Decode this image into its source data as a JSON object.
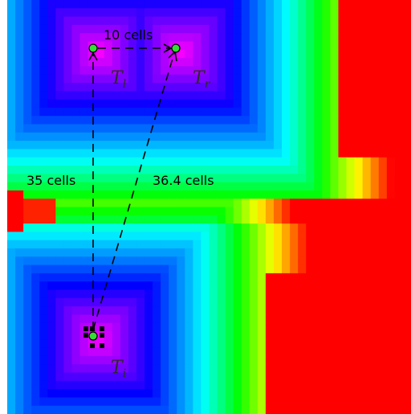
{
  "annotations": {
    "top_distance": "10 cells",
    "left_distance": "35 cells",
    "diagonal_distance": "36.4 cells"
  },
  "targets": {
    "top_left": {
      "name": "T",
      "subscript": "l"
    },
    "top_right": {
      "name": "T",
      "subscript": "r"
    },
    "bottom": {
      "name": "T",
      "subscript": "i"
    }
  },
  "colors": {
    "marker_fill": "#33dd33",
    "arrow": "#000000",
    "far_field": "#ff0000",
    "near_field": "#ff00ff"
  }
}
